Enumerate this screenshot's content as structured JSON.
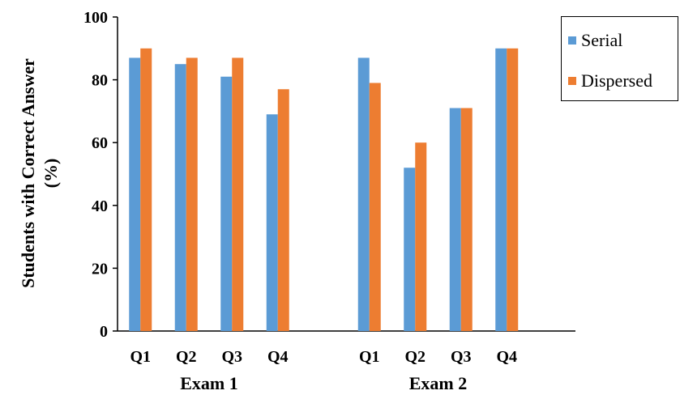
{
  "chart_data": {
    "type": "bar",
    "ylabel_line1": "Students with Correct Answer",
    "ylabel_line2": "(%)",
    "ylim": [
      0,
      100
    ],
    "yticks": [
      "0",
      "20",
      "40",
      "60",
      "80",
      "100"
    ],
    "grid": false,
    "legend_position": "top-right",
    "groups": [
      {
        "label": "Exam 1",
        "categories": [
          "Q1",
          "Q2",
          "Q3",
          "Q4"
        ],
        "series": [
          {
            "name": "Serial",
            "values": [
              87,
              85,
              81,
              69
            ]
          },
          {
            "name": "Dispersed",
            "values": [
              90,
              87,
              87,
              77
            ]
          }
        ]
      },
      {
        "label": "Exam 2",
        "categories": [
          "Q1",
          "Q2",
          "Q3",
          "Q4"
        ],
        "series": [
          {
            "name": "Serial",
            "values": [
              87,
              52,
              71,
              90
            ]
          },
          {
            "name": "Dispersed",
            "values": [
              79,
              60,
              71,
              90
            ]
          }
        ]
      }
    ],
    "legend": [
      {
        "name": "Serial",
        "color": "#5b9bd5"
      },
      {
        "name": "Dispersed",
        "color": "#ed7d31"
      }
    ]
  }
}
